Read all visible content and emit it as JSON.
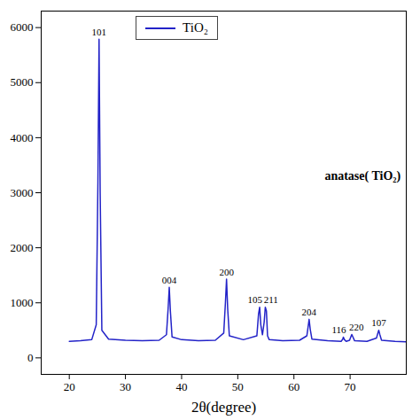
{
  "chart_data": {
    "type": "line",
    "x_label": "2θ(degree)",
    "x": [
      20,
      22,
      24,
      24.8,
      25.1,
      25.3,
      25.5,
      25.8,
      27,
      30,
      33,
      36,
      37.3,
      37.6,
      37.8,
      38.0,
      38.3,
      40,
      43,
      46,
      47.5,
      47.8,
      48.0,
      48.2,
      48.5,
      51,
      53.4,
      53.7,
      53.9,
      54.1,
      54.4,
      54.7,
      54.9,
      55.1,
      55.3,
      55.6,
      58,
      61,
      62.3,
      62.6,
      62.7,
      62.9,
      63.2,
      66,
      68.4,
      68.7,
      68.8,
      69.0,
      69.3,
      69.9,
      70.2,
      70.3,
      70.5,
      70.8,
      73,
      74.7,
      75.0,
      75.1,
      75.3,
      75.6,
      78,
      80
    ],
    "series": [
      {
        "name": "TiO₂",
        "color": "#2323c8",
        "values": [
          300,
          310,
          330,
          600,
          3200,
          5790,
          3000,
          500,
          340,
          320,
          310,
          320,
          420,
          900,
          1280,
          850,
          380,
          330,
          310,
          320,
          450,
          1000,
          1430,
          900,
          400,
          330,
          400,
          800,
          920,
          600,
          420,
          650,
          920,
          850,
          400,
          330,
          310,
          320,
          400,
          620,
          700,
          520,
          340,
          310,
          300,
          340,
          375,
          330,
          300,
          320,
          400,
          425,
          380,
          310,
          300,
          360,
          470,
          500,
          420,
          320,
          300,
          290
        ]
      }
    ],
    "xlim": [
      15,
      80
    ],
    "xticks": [
      20,
      30,
      40,
      50,
      60,
      70
    ],
    "ylim": [
      -300,
      6300
    ],
    "yticks": [
      0,
      1000,
      2000,
      3000,
      4000,
      5000,
      6000
    ],
    "legend": "top-left",
    "annotations": [
      {
        "text": "101",
        "x": 25.3,
        "y": 5790
      },
      {
        "text": "004",
        "x": 37.8,
        "y": 1280
      },
      {
        "text": "200",
        "x": 48.0,
        "y": 1430
      },
      {
        "text": "105",
        "x": 53.9,
        "y": 920
      },
      {
        "text": "211",
        "x": 55.1,
        "y": 920
      },
      {
        "text": "204",
        "x": 62.7,
        "y": 700
      },
      {
        "text": "116",
        "x": 68.8,
        "y": 375
      },
      {
        "text": "220",
        "x": 70.3,
        "y": 425
      },
      {
        "text": "107",
        "x": 75.1,
        "y": 500
      },
      {
        "text": "anatase( TiO₂)",
        "x": 79,
        "y": 3300
      }
    ]
  }
}
